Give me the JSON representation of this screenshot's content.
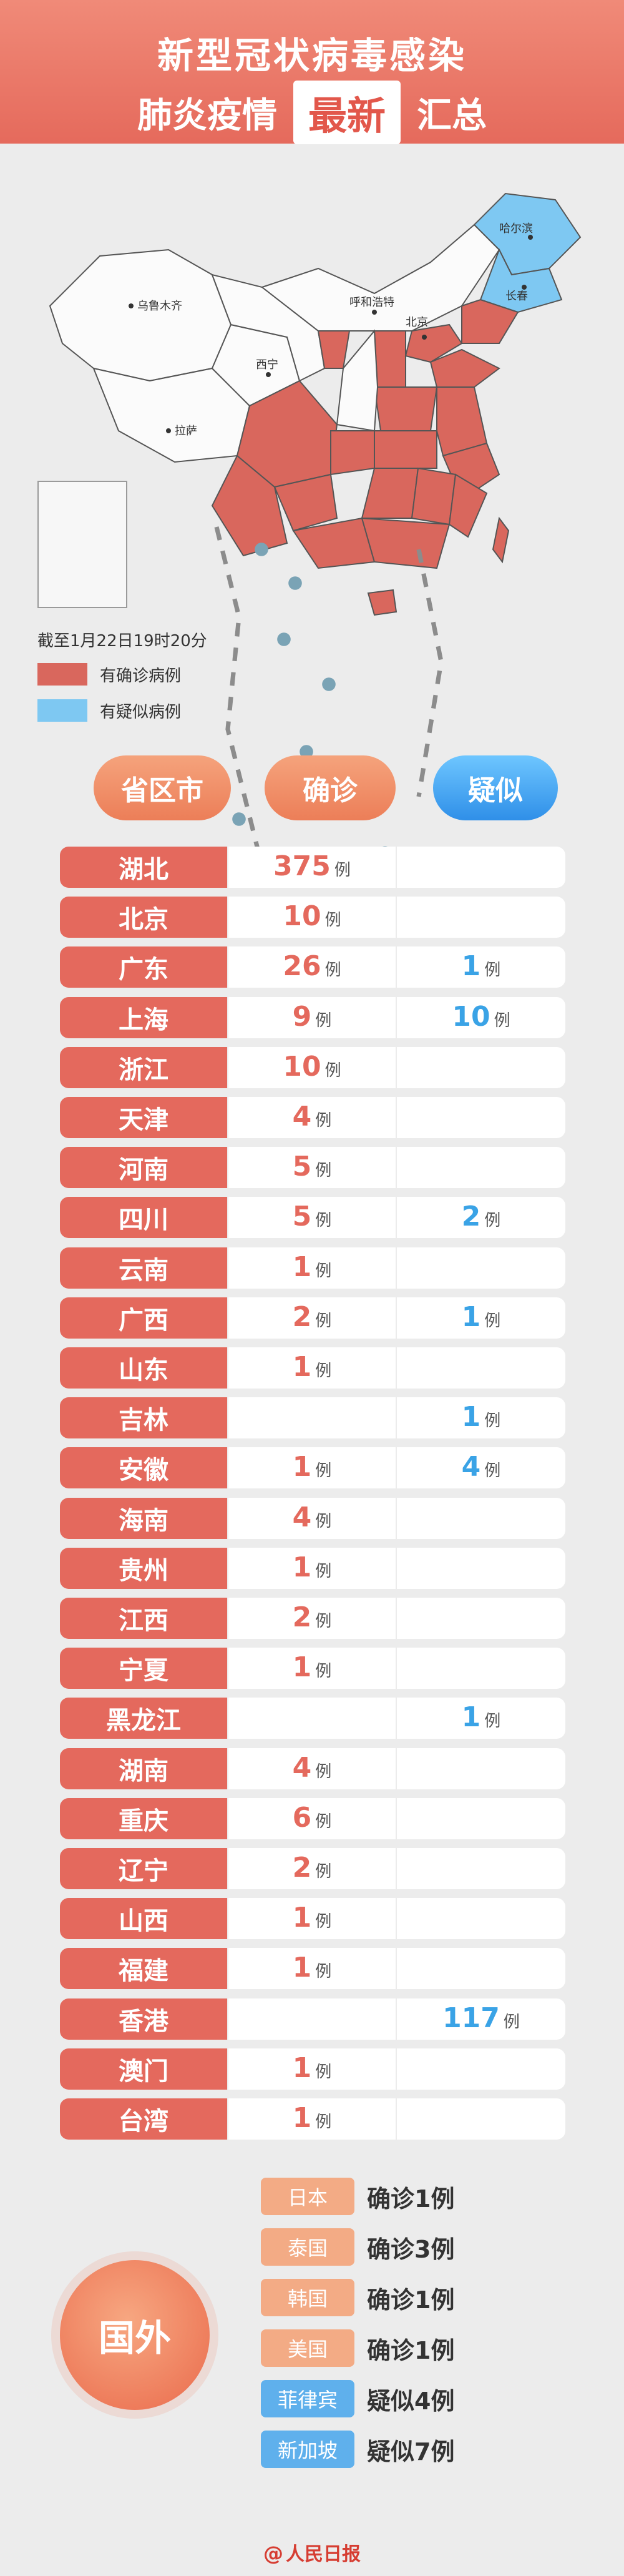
{
  "header": {
    "line1": "新型冠状病毒感染",
    "line2_left": "肺炎疫情",
    "line2_badge": "最新",
    "line2_right": "汇总"
  },
  "map": {
    "date_note": "截至1月22日19时20分",
    "legend": [
      {
        "label": "有确诊病例",
        "color": "#d9675d"
      },
      {
        "label": "有疑似病例",
        "color": "#7ec8f2"
      }
    ],
    "labels": {
      "wulumuqi": "乌鲁木齐",
      "lasa": "拉萨",
      "xining": "西宁",
      "huhehaote": "呼和浩特",
      "beijing": "北京",
      "haerbin": "哈尔滨",
      "changchun": "长春"
    }
  },
  "columns": {
    "province": "省区市",
    "confirmed": "确诊",
    "suspected": "疑似"
  },
  "unit": "例",
  "rows": [
    {
      "name": "湖北",
      "confirmed": "375",
      "confirmed_unit": "例",
      "suspected": "",
      "suspected_unit": ""
    },
    {
      "name": "北京",
      "confirmed": "10",
      "confirmed_unit": "例",
      "suspected": "",
      "suspected_unit": ""
    },
    {
      "name": "广东",
      "confirmed": "26",
      "confirmed_unit": "例",
      "suspected": "1",
      "suspected_unit": "例"
    },
    {
      "name": "上海",
      "confirmed": "9",
      "confirmed_unit": "例",
      "suspected": "10",
      "suspected_unit": "例"
    },
    {
      "name": "浙江",
      "confirmed": "10",
      "confirmed_unit": "例",
      "suspected": "",
      "suspected_unit": ""
    },
    {
      "name": "天津",
      "confirmed": "4",
      "confirmed_unit": "例",
      "suspected": "",
      "suspected_unit": ""
    },
    {
      "name": "河南",
      "confirmed": "5",
      "confirmed_unit": "例",
      "suspected": "",
      "suspected_unit": ""
    },
    {
      "name": "四川",
      "confirmed": "5",
      "confirmed_unit": "例",
      "suspected": "2",
      "suspected_unit": "例"
    },
    {
      "name": "云南",
      "confirmed": "1",
      "confirmed_unit": "例",
      "suspected": "",
      "suspected_unit": ""
    },
    {
      "name": "广西",
      "confirmed": "2",
      "confirmed_unit": "例",
      "suspected": "1",
      "suspected_unit": "例"
    },
    {
      "name": "山东",
      "confirmed": "1",
      "confirmed_unit": "例",
      "suspected": "",
      "suspected_unit": ""
    },
    {
      "name": "吉林",
      "confirmed": "",
      "confirmed_unit": "",
      "suspected": "1",
      "suspected_unit": "例"
    },
    {
      "name": "安徽",
      "confirmed": "1",
      "confirmed_unit": "例",
      "suspected": "4",
      "suspected_unit": "例"
    },
    {
      "name": "海南",
      "confirmed": "4",
      "confirmed_unit": "例",
      "suspected": "",
      "suspected_unit": ""
    },
    {
      "name": "贵州",
      "confirmed": "1",
      "confirmed_unit": "例",
      "suspected": "",
      "suspected_unit": ""
    },
    {
      "name": "江西",
      "confirmed": "2",
      "confirmed_unit": "例",
      "suspected": "",
      "suspected_unit": ""
    },
    {
      "name": "宁夏",
      "confirmed": "1",
      "confirmed_unit": "例",
      "suspected": "",
      "suspected_unit": ""
    },
    {
      "name": "黑龙江",
      "confirmed": "",
      "confirmed_unit": "",
      "suspected": "1",
      "suspected_unit": "例"
    },
    {
      "name": "湖南",
      "confirmed": "4",
      "confirmed_unit": "例",
      "suspected": "",
      "suspected_unit": ""
    },
    {
      "name": "重庆",
      "confirmed": "6",
      "confirmed_unit": "例",
      "suspected": "",
      "suspected_unit": ""
    },
    {
      "name": "辽宁",
      "confirmed": "2",
      "confirmed_unit": "例",
      "suspected": "",
      "suspected_unit": ""
    },
    {
      "name": "山西",
      "confirmed": "1",
      "confirmed_unit": "例",
      "suspected": "",
      "suspected_unit": ""
    },
    {
      "name": "福建",
      "confirmed": "1",
      "confirmed_unit": "例",
      "suspected": "",
      "suspected_unit": ""
    },
    {
      "name": "香港",
      "confirmed": "",
      "confirmed_unit": "",
      "suspected": "117",
      "suspected_unit": "例"
    },
    {
      "name": "澳门",
      "confirmed": "1",
      "confirmed_unit": "例",
      "suspected": "",
      "suspected_unit": ""
    },
    {
      "name": "台湾",
      "confirmed": "1",
      "confirmed_unit": "例",
      "suspected": "",
      "suspected_unit": ""
    }
  ],
  "abroad": {
    "title": "国外",
    "items": [
      {
        "country": "日本",
        "status": "确诊1例",
        "color": "#f3ab85"
      },
      {
        "country": "泰国",
        "status": "确诊3例",
        "color": "#f3ab85"
      },
      {
        "country": "韩国",
        "status": "确诊1例",
        "color": "#f3ab85"
      },
      {
        "country": "美国",
        "status": "确诊1例",
        "color": "#f3ab85"
      },
      {
        "country": "菲律宾",
        "status": "疑似4例",
        "color": "#5fb0ec"
      },
      {
        "country": "新加坡",
        "status": "疑似7例",
        "color": "#5fb0ec"
      }
    ]
  },
  "footer": {
    "logo": "人民日报"
  }
}
